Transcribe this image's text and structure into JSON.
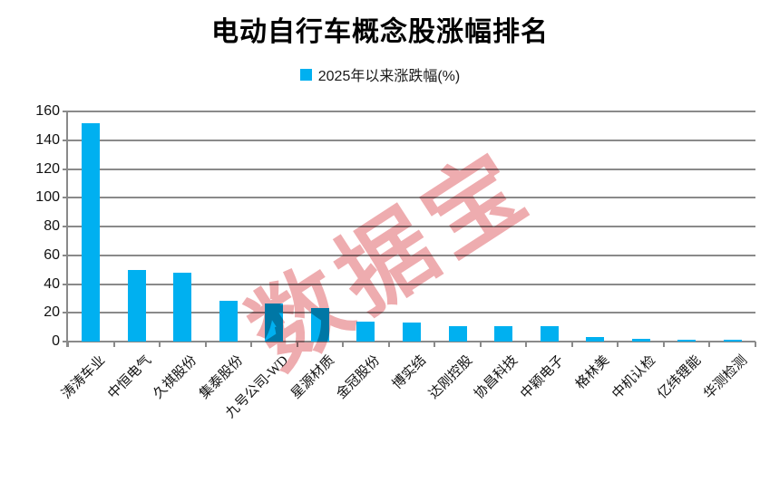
{
  "header": {
    "title": "电动自行车概念股涨幅排名"
  },
  "legend": {
    "label": "2025年以来涨跌幅(%)",
    "marker_color": "#00B0F0"
  },
  "watermark": {
    "text": "数据宝",
    "color": "#E4787D"
  },
  "colors": {
    "bar": "#00B0F0",
    "grid": "#8A8A8A",
    "text": "#111111",
    "title": "#000000"
  },
  "chart_data": {
    "type": "bar",
    "title": "电动自行车概念股涨幅排名",
    "series_name": "2025年以来涨跌幅(%)",
    "categories": [
      "涛涛车业",
      "中恒电气",
      "久祺股份",
      "集泰股份",
      "九号公司-WD",
      "星源材质",
      "金冠股份",
      "博实结",
      "达刚控股",
      "协昌科技",
      "中颖电子",
      "格林美",
      "中机认检",
      "亿纬锂能",
      "华测检测"
    ],
    "values": [
      152,
      49.5,
      48,
      28.5,
      26.5,
      23.5,
      14,
      13,
      11,
      11,
      10.5,
      3,
      2.2,
      1.5,
      1.4
    ],
    "xlabel": "",
    "ylabel": "",
    "ylim": [
      0,
      160
    ],
    "yticks": [
      0,
      20,
      40,
      60,
      80,
      100,
      120,
      140,
      160
    ],
    "grid": true,
    "legend_position": "top-center",
    "bar_color": "#00B0F0",
    "gridline_color": "#8A8A8A",
    "x_label_rotation": -45
  }
}
